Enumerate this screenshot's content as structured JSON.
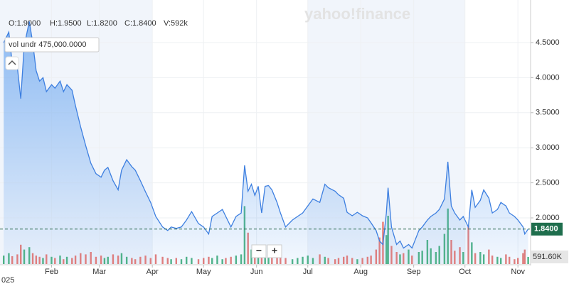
{
  "chart_data": {
    "type": "area",
    "watermark": "yahoo!finance",
    "ohlc_header": [
      "O:1.9000",
      "H:1.9500",
      "L:1.8200",
      "C:1.8400",
      "V:592k"
    ],
    "indicator_label": "vol undr 475,000.0000",
    "year_label": "025",
    "zoom_controls": [
      "−",
      "+"
    ],
    "x": [
      3,
      6,
      8,
      11,
      13,
      15,
      18,
      20,
      22,
      24,
      26,
      28,
      31,
      33,
      36,
      38,
      40,
      43,
      45,
      48,
      51,
      54,
      57,
      60,
      62,
      64,
      67,
      70,
      72,
      75,
      78,
      80,
      83,
      86,
      89,
      92,
      96,
      99,
      101,
      104,
      107,
      110,
      113,
      117,
      120,
      123,
      125,
      128,
      131,
      133,
      136,
      139,
      142,
      144,
      146,
      148,
      150,
      152,
      154,
      156,
      158,
      160,
      163,
      165,
      168,
      172,
      175,
      178,
      181,
      184,
      188,
      191,
      193,
      197,
      199,
      202,
      204,
      207,
      210,
      213,
      216,
      218,
      221,
      223,
      225,
      227,
      228,
      230,
      233,
      235,
      237,
      240,
      242,
      246,
      248,
      251,
      253,
      256,
      258,
      261,
      263,
      265,
      267,
      270,
      272,
      275,
      277,
      279,
      282,
      284,
      287,
      289,
      292,
      294,
      297,
      299,
      302,
      304,
      307,
      308,
      310
    ],
    "values": [
      4.5,
      4.65,
      4.2,
      4.15,
      3.7,
      4.45,
      4.8,
      4.5,
      4.1,
      3.95,
      4.0,
      3.8,
      3.9,
      3.85,
      3.95,
      3.8,
      3.9,
      3.82,
      3.6,
      3.3,
      3.03,
      2.78,
      2.63,
      2.58,
      2.68,
      2.72,
      2.53,
      2.4,
      2.68,
      2.83,
      2.73,
      2.68,
      2.53,
      2.37,
      2.22,
      2.02,
      1.87,
      1.82,
      1.87,
      1.85,
      1.87,
      1.97,
      2.09,
      1.92,
      1.87,
      1.77,
      2.02,
      2.07,
      2.12,
      2.02,
      1.87,
      2.02,
      2.07,
      2.75,
      2.38,
      2.48,
      2.32,
      2.45,
      2.07,
      2.45,
      2.46,
      2.4,
      2.22,
      2.07,
      1.87,
      1.97,
      2.02,
      2.07,
      2.17,
      2.27,
      2.22,
      2.48,
      2.43,
      2.38,
      2.33,
      2.28,
      2.08,
      2.03,
      2.08,
      2.03,
      2.0,
      1.93,
      1.82,
      1.67,
      1.62,
      2.07,
      2.43,
      1.87,
      1.62,
      1.67,
      1.57,
      1.62,
      1.57,
      1.82,
      1.87,
      1.97,
      2.02,
      2.07,
      2.12,
      2.27,
      2.8,
      2.17,
      2.07,
      1.97,
      2.02,
      1.87,
      2.4,
      2.15,
      2.25,
      2.4,
      2.28,
      2.07,
      2.12,
      2.22,
      2.17,
      2.07,
      2.02,
      1.97,
      1.87,
      1.77,
      1.84
    ],
    "volume": [
      700000,
      900000,
      650000,
      800000,
      1600000,
      1200000,
      1400000,
      900000,
      700000,
      600000,
      500000,
      800000,
      600000,
      500000,
      700000,
      400000,
      600000,
      500000,
      700000,
      900000,
      800000,
      1000000,
      600000,
      700000,
      500000,
      600000,
      800000,
      700000,
      900000,
      600000,
      500000,
      400000,
      600000,
      700000,
      500000,
      800000,
      600000,
      500000,
      400000,
      500000,
      400000,
      600000,
      500000,
      400000,
      500000,
      600000,
      500000,
      700000,
      400000,
      500000,
      600000,
      700000,
      800000,
      4800000,
      2600000,
      1200000,
      900000,
      1000000,
      700000,
      800000,
      600000,
      500000,
      700000,
      600000,
      500000,
      400000,
      500000,
      600000,
      700000,
      500000,
      800000,
      600000,
      500000,
      400000,
      500000,
      600000,
      700000,
      500000,
      400000,
      500000,
      600000,
      700000,
      1200000,
      2200000,
      3500000,
      2400000,
      4000000,
      1500000,
      1000000,
      800000,
      900000,
      1200000,
      700000,
      1000000,
      1100000,
      2000000,
      1300000,
      1000000,
      1500000,
      2500000,
      4600000,
      2000000,
      1100000,
      1400000,
      1000000,
      3200000,
      1800000,
      900000,
      1000000,
      800000,
      1200000,
      700000,
      600000,
      500000,
      800000,
      600000,
      400000,
      500000,
      900000,
      1200000,
      591600
    ],
    "line_color": "#3d7fe0",
    "fill_color": "#6aa6f0",
    "up_color": "#4db380",
    "down_color": "#ea7a73",
    "xlim": [
      0,
      311
    ],
    "xticks": [
      {
        "value": 31,
        "label": "Feb"
      },
      {
        "value": 59,
        "label": "Mar"
      },
      {
        "value": 90,
        "label": "Apr"
      },
      {
        "value": 120,
        "label": "May"
      },
      {
        "value": 151,
        "label": "Jun"
      },
      {
        "value": 181,
        "label": "Jul"
      },
      {
        "value": 212,
        "label": "Aug"
      },
      {
        "value": 243,
        "label": "Sep"
      },
      {
        "value": 273,
        "label": "Oct"
      },
      {
        "value": 304,
        "label": "Nov"
      }
    ],
    "ylim": [
      1.342,
      5.107
    ],
    "yticks": [
      {
        "value": 2.0,
        "label": "2.0000"
      },
      {
        "value": 2.5,
        "label": "2.5000"
      },
      {
        "value": 3.0,
        "label": "3.0000"
      },
      {
        "value": 3.5,
        "label": "3.5000"
      },
      {
        "value": 4.0,
        "label": "4.0000"
      },
      {
        "value": 4.5,
        "label": "4.5000"
      }
    ],
    "vol_ylim": [
      0,
      5000000
    ],
    "price_marker": {
      "value": 1.84,
      "label": "1.8400"
    },
    "volume_marker": {
      "value": 591600,
      "label": "591.60K"
    },
    "grid": true
  }
}
